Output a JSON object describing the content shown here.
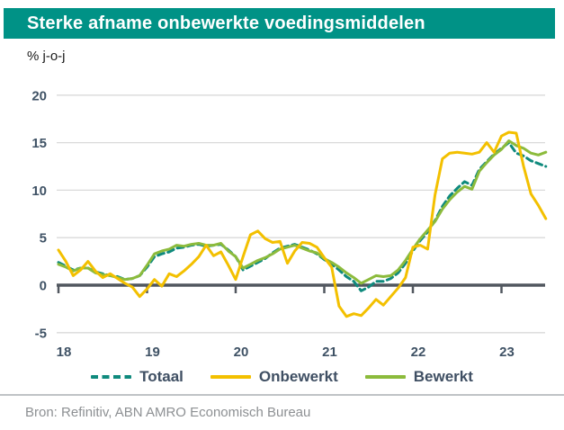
{
  "header": {
    "title": "Sterke afname onbewerkte voedingsmiddelen"
  },
  "unit_label": "% j-o-j",
  "source_note": "Bron: Refinitiv, ABN AMRO Economisch Bureau",
  "colors": {
    "title_bar_background": "#009286",
    "title_text": "#ffffff",
    "axis_zero_line": "#51575f",
    "gridline": "#d9d9d9",
    "tick_label": "#3f5265",
    "legend_text": "#3f4f63",
    "source_text": "#8d9093",
    "totaal_line": "#0f8a7d",
    "onbewerkt_line": "#f3c000",
    "bewerkt_line": "#8cbb3c"
  },
  "chart_data": {
    "type": "line",
    "title": "Sterke afname onbewerkte voedingsmiddelen",
    "xlabel": "",
    "ylabel": "% j-o-j",
    "x_start": "2018-01",
    "x_frequency": "monthly",
    "x_tick_labels": [
      "18",
      "19",
      "20",
      "21",
      "22",
      "23"
    ],
    "x_tick_month_index": [
      0,
      12,
      24,
      36,
      48,
      60
    ],
    "y_ticks": [
      20,
      15,
      10,
      5,
      0,
      -5
    ],
    "ylim": [
      -5,
      20
    ],
    "grid": "horizontal",
    "legend_position": "bottom",
    "series": [
      {
        "name": "Totaal",
        "style": "dashed",
        "color": "#0f8a7d",
        "values": [
          2.4,
          2.0,
          1.6,
          1.8,
          1.8,
          1.4,
          1.2,
          1.0,
          0.9,
          0.6,
          0.7,
          1.0,
          1.9,
          3.0,
          3.3,
          3.5,
          3.9,
          4.0,
          4.2,
          4.3,
          4.1,
          4.2,
          4.3,
          3.7,
          3.0,
          1.6,
          2.0,
          2.4,
          2.8,
          3.4,
          3.9,
          4.1,
          4.3,
          4.0,
          3.7,
          3.3,
          2.7,
          2.2,
          1.6,
          0.9,
          0.4,
          -0.6,
          -0.2,
          0.4,
          0.4,
          0.7,
          1.3,
          2.3,
          3.6,
          4.7,
          5.6,
          6.8,
          8.3,
          9.4,
          10.2,
          10.9,
          10.5,
          12.2,
          13.0,
          13.8,
          14.4,
          15.0,
          13.9,
          13.6,
          13.1,
          12.8,
          12.5
        ]
      },
      {
        "name": "Onbewerkt",
        "style": "solid",
        "color": "#f3c000",
        "values": [
          3.7,
          2.5,
          1.0,
          1.6,
          2.5,
          1.5,
          0.8,
          1.2,
          0.7,
          0.2,
          -0.2,
          -1.2,
          -0.4,
          0.6,
          -0.1,
          1.2,
          0.9,
          1.5,
          2.2,
          3.0,
          4.2,
          3.1,
          3.5,
          2.1,
          0.6,
          3.0,
          5.3,
          5.7,
          4.9,
          4.5,
          4.6,
          2.3,
          3.6,
          4.5,
          4.4,
          4.0,
          2.9,
          1.9,
          -2.2,
          -3.3,
          -3.0,
          -3.2,
          -2.4,
          -1.5,
          -2.1,
          -1.2,
          -0.3,
          0.8,
          4.0,
          4.2,
          3.8,
          9.5,
          13.3,
          13.9,
          14.0,
          13.9,
          13.8,
          14.0,
          15.0,
          14.0,
          15.7,
          16.1,
          16.0,
          12.5,
          9.6,
          8.4,
          7.0
        ]
      },
      {
        "name": "Bewerkt",
        "style": "solid",
        "color": "#8cbb3c",
        "values": [
          2.2,
          1.9,
          1.5,
          1.8,
          1.8,
          1.3,
          1.1,
          1.0,
          0.8,
          0.6,
          0.7,
          1.0,
          2.1,
          3.3,
          3.6,
          3.8,
          4.2,
          4.1,
          4.3,
          4.4,
          4.2,
          4.2,
          4.4,
          3.6,
          3.0,
          1.8,
          2.2,
          2.6,
          2.9,
          3.3,
          3.8,
          4.0,
          4.2,
          3.9,
          3.6,
          3.4,
          2.8,
          2.4,
          1.9,
          1.3,
          0.8,
          0.2,
          0.6,
          1.0,
          0.9,
          1.0,
          1.6,
          2.6,
          3.8,
          4.9,
          5.8,
          6.7,
          8.0,
          9.0,
          9.8,
          10.4,
          10.1,
          12.0,
          12.9,
          13.7,
          14.3,
          15.2,
          14.7,
          14.4,
          13.9,
          13.7,
          14.0
        ]
      }
    ]
  }
}
